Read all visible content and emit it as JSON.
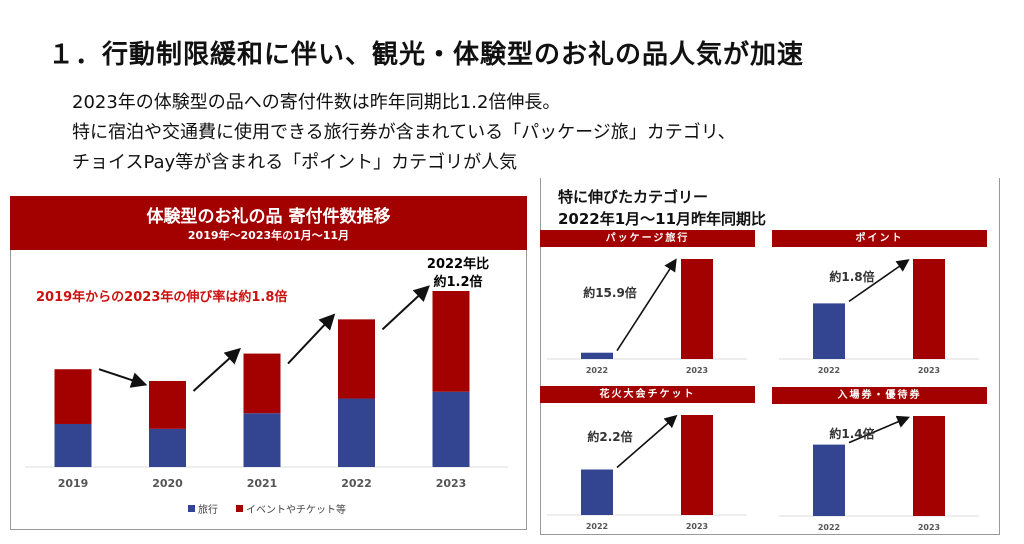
{
  "title": "１．行動制限緩和に伴い、観光・体験型のお礼の品人気が加速",
  "subtitle_lines": [
    "2023年の体験型の品への寄付件数は昨年同期比1.2倍伸長。",
    "特に宿泊や交通費に使用できる旅行券が含まれている「パッケージ旅」カテゴリ、",
    "チョイスPay等が含まれる「ポイント」カテゴリが人気"
  ],
  "colors": {
    "red": "#a30000",
    "blue": "#334490",
    "annotation_red": "#cc1111"
  },
  "chart_data": [
    {
      "type": "bar",
      "stacked": true,
      "title": "体験型のお礼の品 寄付件数推移",
      "subtitle": "2019年～2023年の1月～11月",
      "categories": [
        "2019",
        "2020",
        "2021",
        "2022",
        "2023"
      ],
      "series": [
        {
          "name": "旅行",
          "values": [
            44,
            39,
            55,
            70,
            77
          ]
        },
        {
          "name": "イベントやチケット等",
          "values": [
            56,
            49,
            61,
            81,
            103
          ]
        }
      ],
      "annotations": [
        "2019年からの2023年の伸び率は約1.8倍",
        "2022年比",
        "約1.2倍"
      ],
      "legend": "bottom",
      "grid": false
    },
    {
      "type": "bar",
      "title": "パッケージ旅行",
      "categories": [
        "2022",
        "2023"
      ],
      "values": [
        6.3,
        100
      ],
      "annotation": "約15.9倍"
    },
    {
      "type": "bar",
      "title": "ポイント",
      "categories": [
        "2022",
        "2023"
      ],
      "values": [
        55.6,
        100
      ],
      "annotation": "約1.8倍"
    },
    {
      "type": "bar",
      "title": "花火大会チケット",
      "categories": [
        "2022",
        "2023"
      ],
      "values": [
        45.5,
        100
      ],
      "annotation": "約2.2倍"
    },
    {
      "type": "bar",
      "title": "入場券・優待券",
      "categories": [
        "2022",
        "2023"
      ],
      "values": [
        71.4,
        100
      ],
      "annotation": "約1.4倍"
    }
  ],
  "right_panel": {
    "title_line1": "特に伸びたカテゴリー",
    "title_line2": "2022年1月～11月昨年同期比"
  }
}
